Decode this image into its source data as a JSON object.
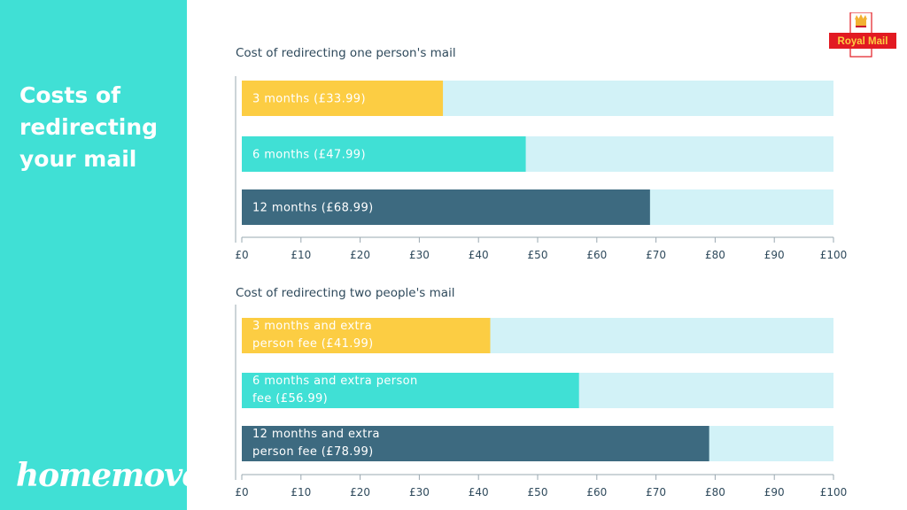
{
  "sidebar": {
    "title": "Costs of\nredirecting\nyour mail",
    "brand": "homemove"
  },
  "logo": {
    "text": "Royal Mail",
    "icon": "crown-icon",
    "color": "#E21A22"
  },
  "colors": {
    "track": "#D2F2F7",
    "yellow": "#FCCD43",
    "turquoise": "#40E0D5",
    "slate": "#3D6A80",
    "axis": "#9aa8b0"
  },
  "chart_data": [
    {
      "type": "bar",
      "orientation": "horizontal",
      "title": "Cost of redirecting one person's mail",
      "xlim": [
        0,
        100
      ],
      "ticks": [
        "£0",
        "£10",
        "£20",
        "£30",
        "£40",
        "£50",
        "£60",
        "£70",
        "£80",
        "£90",
        "£100"
      ],
      "bars": [
        {
          "label": [
            "3 months (£33.99)"
          ],
          "value": 33.99,
          "color": "#FCCD43"
        },
        {
          "label": [
            "6 months  (£47.99)"
          ],
          "value": 47.99,
          "color": "#40E0D5"
        },
        {
          "label": [
            "12 months (£68.99)"
          ],
          "value": 68.99,
          "color": "#3D6A80"
        }
      ]
    },
    {
      "type": "bar",
      "orientation": "horizontal",
      "title": "Cost of redirecting two people's mail",
      "xlim": [
        0,
        100
      ],
      "ticks": [
        "£0",
        "£10",
        "£20",
        "£30",
        "£40",
        "£50",
        "£60",
        "£70",
        "£80",
        "£90",
        "£100"
      ],
      "bars": [
        {
          "label": [
            "3 months and extra",
            "person fee (£41.99)"
          ],
          "value": 41.99,
          "color": "#FCCD43"
        },
        {
          "label": [
            "6 months and extra person",
            "fee  (£56.99)"
          ],
          "value": 56.99,
          "color": "#40E0D5"
        },
        {
          "label": [
            "12 months and extra",
            "person fee (£78.99)"
          ],
          "value": 78.99,
          "color": "#3D6A80"
        }
      ]
    }
  ]
}
